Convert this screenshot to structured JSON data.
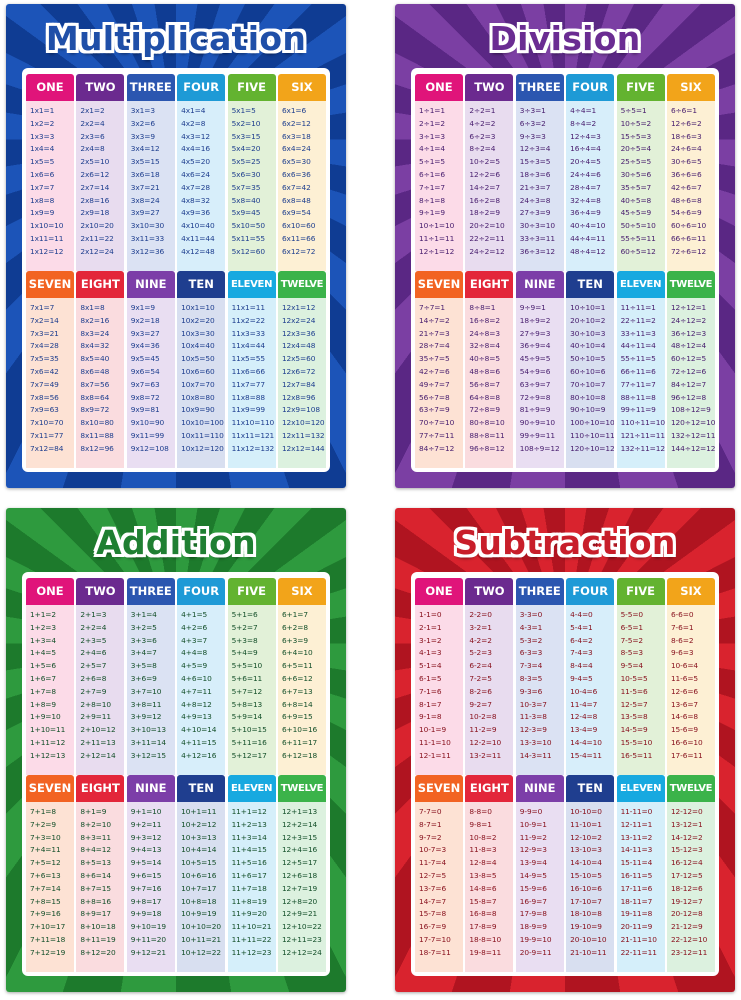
{
  "column_colors": [
    "#e0147a",
    "#6b2a8f",
    "#2b56b0",
    "#1e9ad6",
    "#63b330",
    "#f2a41a",
    "#f26322",
    "#e3263a",
    "#7c3ea8",
    "#1f3e8f",
    "#17a9e0",
    "#3bb34a"
  ],
  "column_tints": [
    "#fcdbe8",
    "#e8dcef",
    "#dbe2f3",
    "#d7eefa",
    "#e2f1d8",
    "#fdf0d4",
    "#fde2d4",
    "#fadcdf",
    "#e9def2",
    "#d8dff0",
    "#d5effa",
    "#dcf1df"
  ],
  "posters": [
    {
      "title": "Multiplication",
      "theme": {
        "bg": "#1c54b8",
        "bg_dark": "#0f3c93",
        "title_color": "#1f4fa8",
        "title_outline": "#ffffff",
        "text_color": "#1f3f8f"
      },
      "tables": [
        {
          "label": "ONE",
          "facts": [
            "1x1=1",
            "1x2=2",
            "1x3=3",
            "1x4=4",
            "1x5=5",
            "1x6=6",
            "1x7=7",
            "1x8=8",
            "1x9=9",
            "1x10=10",
            "1x11=11",
            "1x12=12"
          ]
        },
        {
          "label": "TWO",
          "facts": [
            "2x1=2",
            "2x2=4",
            "2x3=6",
            "2x4=8",
            "2x5=10",
            "2x6=12",
            "2x7=14",
            "2x8=16",
            "2x9=18",
            "2x10=20",
            "2x11=22",
            "2x12=24"
          ]
        },
        {
          "label": "THREE",
          "facts": [
            "3x1=3",
            "3x2=6",
            "3x3=9",
            "3x4=12",
            "3x5=15",
            "3x6=18",
            "3x7=21",
            "3x8=24",
            "3x9=27",
            "3x10=30",
            "3x11=33",
            "3x12=36"
          ]
        },
        {
          "label": "FOUR",
          "facts": [
            "4x1=4",
            "4x2=8",
            "4x3=12",
            "4x4=16",
            "4x5=20",
            "4x6=24",
            "4x7=28",
            "4x8=32",
            "4x9=36",
            "4x10=40",
            "4x11=44",
            "4x12=48"
          ]
        },
        {
          "label": "FIVE",
          "facts": [
            "5x1=5",
            "5x2=10",
            "5x3=15",
            "5x4=20",
            "5x5=25",
            "5x6=30",
            "5x7=35",
            "5x8=40",
            "5x9=45",
            "5x10=50",
            "5x11=55",
            "5x12=60"
          ]
        },
        {
          "label": "SIX",
          "facts": [
            "6x1=6",
            "6x2=12",
            "6x3=18",
            "6x4=24",
            "6x5=30",
            "6x6=36",
            "6x7=42",
            "6x8=48",
            "6x9=54",
            "6x10=60",
            "6x11=66",
            "6x12=72"
          ]
        },
        {
          "label": "SEVEN",
          "facts": [
            "7x1=7",
            "7x2=14",
            "7x3=21",
            "7x4=28",
            "7x5=35",
            "7x6=42",
            "7x7=49",
            "7x8=56",
            "7x9=63",
            "7x10=70",
            "7x11=77",
            "7x12=84"
          ]
        },
        {
          "label": "EIGHT",
          "facts": [
            "8x1=8",
            "8x2=16",
            "8x3=24",
            "8x4=32",
            "8x5=40",
            "8x6=48",
            "8x7=56",
            "8x8=64",
            "8x9=72",
            "8x10=80",
            "8x11=88",
            "8x12=96"
          ]
        },
        {
          "label": "NINE",
          "facts": [
            "9x1=9",
            "9x2=18",
            "9x3=27",
            "9x4=36",
            "9x5=45",
            "9x6=54",
            "9x7=63",
            "9x8=72",
            "9x9=81",
            "9x10=90",
            "9x11=99",
            "9x12=108"
          ]
        },
        {
          "label": "TEN",
          "facts": [
            "10x1=10",
            "10x2=20",
            "10x3=30",
            "10x4=40",
            "10x5=50",
            "10x6=60",
            "10x7=70",
            "10x8=80",
            "10x9=90",
            "10x10=100",
            "10x11=110",
            "10x12=120"
          ]
        },
        {
          "label": "ELEVEN",
          "facts": [
            "11x1=11",
            "11x2=22",
            "11x3=33",
            "11x4=44",
            "11x5=55",
            "11x6=66",
            "11x7=77",
            "11x8=88",
            "11x9=99",
            "11x10=110",
            "11x11=121",
            "11x12=132"
          ]
        },
        {
          "label": "TWELVE",
          "facts": [
            "12x1=12",
            "12x2=24",
            "12x3=36",
            "12x4=48",
            "12x5=60",
            "12x6=72",
            "12x7=84",
            "12x8=96",
            "12x9=108",
            "12x10=120",
            "12x11=132",
            "12x12=144"
          ]
        }
      ]
    },
    {
      "title": "Division",
      "theme": {
        "bg": "#7b3fa3",
        "bg_dark": "#5a2784",
        "title_color": "#6a2c92",
        "title_outline": "#ffffff",
        "text_color": "#4a2070"
      },
      "tables": [
        {
          "label": "ONE",
          "facts": [
            "1÷1=1",
            "2÷1=2",
            "3÷1=3",
            "4÷1=4",
            "5÷1=5",
            "6÷1=6",
            "7÷1=7",
            "8÷1=8",
            "9÷1=9",
            "10÷1=10",
            "11÷1=11",
            "12÷1=12"
          ]
        },
        {
          "label": "TWO",
          "facts": [
            "2÷2=1",
            "4÷2=2",
            "6÷2=3",
            "8÷2=4",
            "10÷2=5",
            "12÷2=6",
            "14÷2=7",
            "16÷2=8",
            "18÷2=9",
            "20÷2=10",
            "22÷2=11",
            "24÷2=12"
          ]
        },
        {
          "label": "THREE",
          "facts": [
            "3÷3=1",
            "6÷3=2",
            "9÷3=3",
            "12÷3=4",
            "15÷3=5",
            "18÷3=6",
            "21÷3=7",
            "24÷3=8",
            "27÷3=9",
            "30÷3=10",
            "33÷3=11",
            "36÷3=12"
          ]
        },
        {
          "label": "FOUR",
          "facts": [
            "4÷4=1",
            "8÷4=2",
            "12÷4=3",
            "16÷4=4",
            "20÷4=5",
            "24÷4=6",
            "28÷4=7",
            "32÷4=8",
            "36÷4=9",
            "40÷4=10",
            "44÷4=11",
            "48÷4=12"
          ]
        },
        {
          "label": "FIVE",
          "facts": [
            "5÷5=1",
            "10÷5=2",
            "15÷5=3",
            "20÷5=4",
            "25÷5=5",
            "30÷5=6",
            "35÷5=7",
            "40÷5=8",
            "45÷5=9",
            "50÷5=10",
            "55÷5=11",
            "60÷5=12"
          ]
        },
        {
          "label": "SIX",
          "facts": [
            "6÷6=1",
            "12÷6=2",
            "18÷6=3",
            "24÷6=4",
            "30÷6=5",
            "36÷6=6",
            "42÷6=7",
            "48÷6=8",
            "54÷6=9",
            "60÷6=10",
            "66÷6=11",
            "72÷6=12"
          ]
        },
        {
          "label": "SEVEN",
          "facts": [
            "7÷7=1",
            "14÷7=2",
            "21÷7=3",
            "28÷7=4",
            "35÷7=5",
            "42÷7=6",
            "49÷7=7",
            "56÷7=8",
            "63÷7=9",
            "70÷7=10",
            "77÷7=11",
            "84÷7=12"
          ]
        },
        {
          "label": "EIGHT",
          "facts": [
            "8÷8=1",
            "16÷8=2",
            "24÷8=3",
            "32÷8=4",
            "40÷8=5",
            "48÷8=6",
            "56÷8=7",
            "64÷8=8",
            "72÷8=9",
            "80÷8=10",
            "88÷8=11",
            "96÷8=12"
          ]
        },
        {
          "label": "NINE",
          "facts": [
            "9÷9=1",
            "18÷9=2",
            "27÷9=3",
            "36÷9=4",
            "45÷9=5",
            "54÷9=6",
            "63÷9=7",
            "72÷9=8",
            "81÷9=9",
            "90÷9=10",
            "99÷9=11",
            "108÷9=12"
          ]
        },
        {
          "label": "TEN",
          "facts": [
            "10÷10=1",
            "20÷10=2",
            "30÷10=3",
            "40÷10=4",
            "50÷10=5",
            "60÷10=6",
            "70÷10=7",
            "80÷10=8",
            "90÷10=9",
            "100÷10=10",
            "110÷10=11",
            "120÷10=12"
          ]
        },
        {
          "label": "ELEVEN",
          "facts": [
            "11÷11=1",
            "22÷11=2",
            "33÷11=3",
            "44÷11=4",
            "55÷11=5",
            "66÷11=6",
            "77÷11=7",
            "88÷11=8",
            "99÷11=9",
            "110÷11=10",
            "121÷11=11",
            "132÷11=12"
          ]
        },
        {
          "label": "TWELVE",
          "facts": [
            "12÷12=1",
            "24÷12=2",
            "36÷12=3",
            "48÷12=4",
            "60÷12=5",
            "72÷12=6",
            "84÷12=7",
            "96÷12=8",
            "108÷12=9",
            "120÷12=10",
            "132÷12=11",
            "144÷12=12"
          ]
        }
      ]
    },
    {
      "title": "Addition",
      "theme": {
        "bg": "#2e9a3e",
        "bg_dark": "#1d7a2c",
        "title_color": "#1f7f32",
        "title_outline": "#ffffff",
        "text_color": "#14502a"
      },
      "tables": [
        {
          "label": "ONE",
          "facts": [
            "1+1=2",
            "1+2=3",
            "1+3=4",
            "1+4=5",
            "1+5=6",
            "1+6=7",
            "1+7=8",
            "1+8=9",
            "1+9=10",
            "1+10=11",
            "1+11=12",
            "1+12=13"
          ]
        },
        {
          "label": "TWO",
          "facts": [
            "2+1=3",
            "2+2=4",
            "2+3=5",
            "2+4=6",
            "2+5=7",
            "2+6=8",
            "2+7=9",
            "2+8=10",
            "2+9=11",
            "2+10=12",
            "2+11=13",
            "2+12=14"
          ]
        },
        {
          "label": "THREE",
          "facts": [
            "3+1=4",
            "3+2=5",
            "3+3=6",
            "3+4=7",
            "3+5=8",
            "3+6=9",
            "3+7=10",
            "3+8=11",
            "3+9=12",
            "3+10=13",
            "3+11=14",
            "3+12=15"
          ]
        },
        {
          "label": "FOUR",
          "facts": [
            "4+1=5",
            "4+2=6",
            "4+3=7",
            "4+4=8",
            "4+5=9",
            "4+6=10",
            "4+7=11",
            "4+8=12",
            "4+9=13",
            "4+10=14",
            "4+11=15",
            "4+12=16"
          ]
        },
        {
          "label": "FIVE",
          "facts": [
            "5+1=6",
            "5+2=7",
            "5+3=8",
            "5+4=9",
            "5+5=10",
            "5+6=11",
            "5+7=12",
            "5+8=13",
            "5+9=14",
            "5+10=15",
            "5+11=16",
            "5+12=17"
          ]
        },
        {
          "label": "SIX",
          "facts": [
            "6+1=7",
            "6+2=8",
            "6+3=9",
            "6+4=10",
            "6+5=11",
            "6+6=12",
            "6+7=13",
            "6+8=14",
            "6+9=15",
            "6+10=16",
            "6+11=17",
            "6+12=18"
          ]
        },
        {
          "label": "SEVEN",
          "facts": [
            "7+1=8",
            "7+2=9",
            "7+3=10",
            "7+4=11",
            "7+5=12",
            "7+6=13",
            "7+7=14",
            "7+8=15",
            "7+9=16",
            "7+10=17",
            "7+11=18",
            "7+12=19"
          ]
        },
        {
          "label": "EIGHT",
          "facts": [
            "8+1=9",
            "8+2=10",
            "8+3=11",
            "8+4=12",
            "8+5=13",
            "8+6=14",
            "8+7=15",
            "8+8=16",
            "8+9=17",
            "8+10=18",
            "8+11=19",
            "8+12=20"
          ]
        },
        {
          "label": "NINE",
          "facts": [
            "9+1=10",
            "9+2=11",
            "9+3=12",
            "9+4=13",
            "9+5=14",
            "9+6=15",
            "9+7=16",
            "9+8=17",
            "9+9=18",
            "9+10=19",
            "9+11=20",
            "9+12=21"
          ]
        },
        {
          "label": "TEN",
          "facts": [
            "10+1=11",
            "10+2=12",
            "10+3=13",
            "10+4=14",
            "10+5=15",
            "10+6=16",
            "10+7=17",
            "10+8=18",
            "10+9=19",
            "10+10=20",
            "10+11=21",
            "10+12=22"
          ]
        },
        {
          "label": "ELEVEN",
          "facts": [
            "11+1=12",
            "11+2=13",
            "11+3=14",
            "11+4=15",
            "11+5=16",
            "11+6=17",
            "11+7=18",
            "11+8=19",
            "11+9=20",
            "11+10=21",
            "11+11=22",
            "11+12=23"
          ]
        },
        {
          "label": "TWELVE",
          "facts": [
            "12+1=13",
            "12+2=14",
            "12+3=15",
            "12+4=16",
            "12+5=17",
            "12+6=18",
            "12+7=19",
            "12+8=20",
            "12+9=21",
            "12+10=22",
            "12+11=23",
            "12+12=24"
          ]
        }
      ]
    },
    {
      "title": "Subtraction",
      "theme": {
        "bg": "#d9232e",
        "bg_dark": "#b01420",
        "title_color": "#c81e2a",
        "title_outline": "#ffffff",
        "text_color": "#8a1420"
      },
      "tables": [
        {
          "label": "ONE",
          "facts": [
            "1-1=0",
            "2-1=1",
            "3-1=2",
            "4-1=3",
            "5-1=4",
            "6-1=5",
            "7-1=6",
            "8-1=7",
            "9-1=8",
            "10-1=9",
            "11-1=10",
            "12-1=11"
          ]
        },
        {
          "label": "TWO",
          "facts": [
            "2-2=0",
            "3-2=1",
            "4-2=2",
            "5-2=3",
            "6-2=4",
            "7-2=5",
            "8-2=6",
            "9-2=7",
            "10-2=8",
            "11-2=9",
            "12-2=10",
            "13-2=11"
          ]
        },
        {
          "label": "THREE",
          "facts": [
            "3-3=0",
            "4-3=1",
            "5-3=2",
            "6-3=3",
            "7-3=4",
            "8-3=5",
            "9-3=6",
            "10-3=7",
            "11-3=8",
            "12-3=9",
            "13-3=10",
            "14-3=11"
          ]
        },
        {
          "label": "FOUR",
          "facts": [
            "4-4=0",
            "5-4=1",
            "6-4=2",
            "7-4=3",
            "8-4=4",
            "9-4=5",
            "10-4=6",
            "11-4=7",
            "12-4=8",
            "13-4=9",
            "14-4=10",
            "15-4=11"
          ]
        },
        {
          "label": "FIVE",
          "facts": [
            "5-5=0",
            "6-5=1",
            "7-5=2",
            "8-5=3",
            "9-5=4",
            "10-5=5",
            "11-5=6",
            "12-5=7",
            "13-5=8",
            "14-5=9",
            "15-5=10",
            "16-5=11"
          ]
        },
        {
          "label": "SIX",
          "facts": [
            "6-6=0",
            "7-6=1",
            "8-6=2",
            "9-6=3",
            "10-6=4",
            "11-6=5",
            "12-6=6",
            "13-6=7",
            "14-6=8",
            "15-6=9",
            "16-6=10",
            "17-6=11"
          ]
        },
        {
          "label": "SEVEN",
          "facts": [
            "7-7=0",
            "8-7=1",
            "9-7=2",
            "10-7=3",
            "11-7=4",
            "12-7=5",
            "13-7=6",
            "14-7=7",
            "15-7=8",
            "16-7=9",
            "17-7=10",
            "18-7=11"
          ]
        },
        {
          "label": "EIGHT",
          "facts": [
            "8-8=0",
            "9-8=1",
            "10-8=2",
            "11-8=3",
            "12-8=4",
            "13-8=5",
            "14-8=6",
            "15-8=7",
            "16-8=8",
            "17-8=9",
            "18-8=10",
            "19-8=11"
          ]
        },
        {
          "label": "NINE",
          "facts": [
            "9-9=0",
            "10-9=1",
            "11-9=2",
            "12-9=3",
            "13-9=4",
            "14-9=5",
            "15-9=6",
            "16-9=7",
            "17-9=8",
            "18-9=9",
            "19-9=10",
            "20-9=11"
          ]
        },
        {
          "label": "TEN",
          "facts": [
            "10-10=0",
            "11-10=1",
            "12-10=2",
            "13-10=3",
            "14-10=4",
            "15-10=5",
            "16-10=6",
            "17-10=7",
            "18-10=8",
            "19-10=9",
            "20-10=10",
            "21-10=11"
          ]
        },
        {
          "label": "ELEVEN",
          "facts": [
            "11-11=0",
            "12-11=1",
            "13-11=2",
            "14-11=3",
            "15-11=4",
            "16-11=5",
            "17-11=6",
            "18-11=7",
            "19-11=8",
            "20-11=9",
            "21-11=10",
            "22-11=11"
          ]
        },
        {
          "label": "TWELVE",
          "facts": [
            "12-12=0",
            "13-12=1",
            "14-12=2",
            "15-12=3",
            "16-12=4",
            "17-12=5",
            "18-12=6",
            "19-12=7",
            "20-12=8",
            "21-12=9",
            "22-12=10",
            "23-12=11"
          ]
        }
      ]
    }
  ]
}
